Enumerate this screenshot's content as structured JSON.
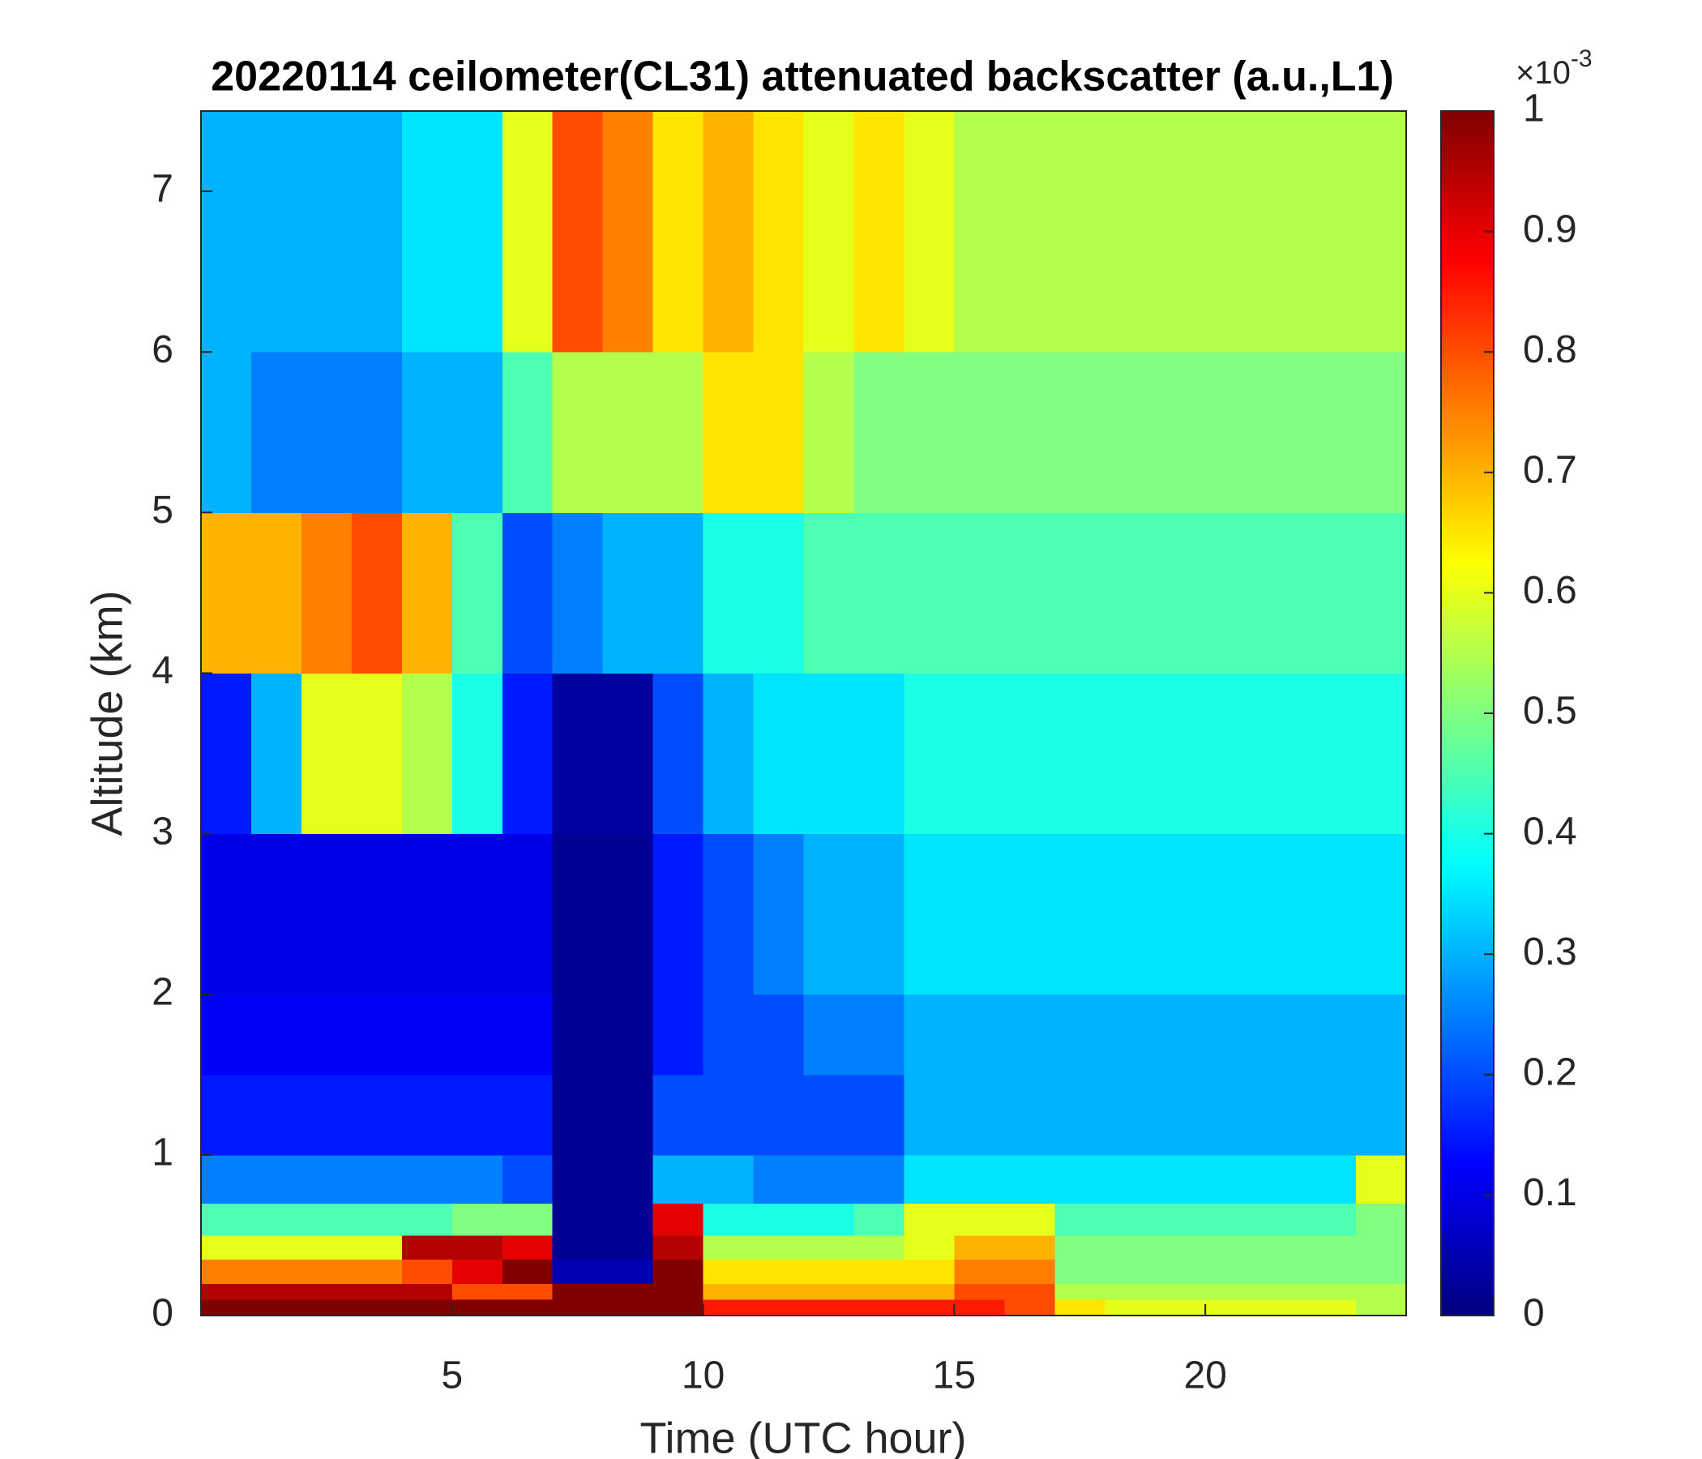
{
  "chart_data": {
    "type": "heatmap",
    "title": "20220114 ceilometer(CL31) attenuated backscatter (a.u.,L1)",
    "x_label": "Time (UTC hour)",
    "y_label": "Altitude (km)",
    "xlim": [
      0,
      24
    ],
    "ylim": [
      0,
      7.5
    ],
    "xticks": [
      5,
      10,
      15,
      20
    ],
    "yticks": [
      0,
      1,
      2,
      3,
      4,
      5,
      6,
      7
    ],
    "xbins": [
      0,
      1,
      2,
      3,
      4,
      5,
      6,
      7,
      8,
      9,
      10,
      11,
      12,
      13,
      14,
      15,
      16,
      17,
      18,
      19,
      20,
      21,
      22,
      23,
      24
    ],
    "ybins": [
      0,
      0.1,
      0.2,
      0.35,
      0.5,
      0.7,
      1,
      1.5,
      2,
      3,
      4,
      5,
      6,
      7.5
    ],
    "colormap": "jet",
    "clim": [
      0,
      1
    ],
    "cticks": [
      0,
      0.1,
      0.2,
      0.3,
      0.4,
      0.5,
      0.6,
      0.7,
      0.8,
      0.9,
      1
    ],
    "colorbar_multiplier_base": "×10",
    "colorbar_multiplier_exponent": "-3",
    "z": [
      [
        1,
        1,
        1,
        1,
        1,
        1,
        1,
        1,
        1,
        1,
        0.85,
        0.85,
        0.85,
        0.85,
        0.85,
        0.85,
        0.8,
        0.65,
        0.6,
        0.6,
        0.6,
        0.6,
        0.6,
        0.55
      ],
      [
        0.95,
        0.95,
        0.95,
        0.95,
        0.95,
        0.8,
        0.8,
        1,
        1,
        1,
        0.7,
        0.7,
        0.7,
        0.7,
        0.7,
        0.8,
        0.8,
        0.55,
        0.55,
        0.55,
        0.55,
        0.55,
        0.55,
        0.55
      ],
      [
        0.75,
        0.75,
        0.75,
        0.75,
        0.8,
        0.9,
        1,
        0.05,
        0.05,
        1,
        0.65,
        0.65,
        0.65,
        0.65,
        0.65,
        0.75,
        0.75,
        0.5,
        0.5,
        0.5,
        0.5,
        0.5,
        0.5,
        0.5
      ],
      [
        0.6,
        0.6,
        0.6,
        0.6,
        0.95,
        0.95,
        0.9,
        0.02,
        0.02,
        0.95,
        0.55,
        0.55,
        0.55,
        0.55,
        0.6,
        0.7,
        0.7,
        0.5,
        0.5,
        0.5,
        0.5,
        0.5,
        0.5,
        0.5
      ],
      [
        0.45,
        0.45,
        0.45,
        0.45,
        0.45,
        0.5,
        0.5,
        0.02,
        0.02,
        0.9,
        0.4,
        0.4,
        0.4,
        0.45,
        0.6,
        0.6,
        0.6,
        0.45,
        0.45,
        0.45,
        0.45,
        0.45,
        0.45,
        0.5
      ],
      [
        0.25,
        0.25,
        0.25,
        0.25,
        0.25,
        0.25,
        0.2,
        0.02,
        0.02,
        0.3,
        0.3,
        0.25,
        0.25,
        0.25,
        0.35,
        0.35,
        0.35,
        0.35,
        0.35,
        0.35,
        0.35,
        0.35,
        0.35,
        0.6
      ],
      [
        0.15,
        0.15,
        0.15,
        0.15,
        0.15,
        0.15,
        0.15,
        0.02,
        0.02,
        0.2,
        0.2,
        0.2,
        0.2,
        0.2,
        0.3,
        0.3,
        0.3,
        0.3,
        0.3,
        0.3,
        0.3,
        0.3,
        0.3,
        0.3
      ],
      [
        0.12,
        0.12,
        0.12,
        0.12,
        0.12,
        0.12,
        0.12,
        0.02,
        0.02,
        0.15,
        0.2,
        0.2,
        0.25,
        0.25,
        0.3,
        0.3,
        0.3,
        0.3,
        0.3,
        0.3,
        0.3,
        0.3,
        0.3,
        0.3
      ],
      [
        0.1,
        0.1,
        0.1,
        0.1,
        0.1,
        0.1,
        0.1,
        0.02,
        0.02,
        0.15,
        0.2,
        0.25,
        0.3,
        0.3,
        0.35,
        0.35,
        0.35,
        0.35,
        0.35,
        0.35,
        0.35,
        0.35,
        0.35,
        0.35
      ],
      [
        0.15,
        0.3,
        0.6,
        0.6,
        0.55,
        0.4,
        0.15,
        0.03,
        0.03,
        0.2,
        0.3,
        0.35,
        0.35,
        0.35,
        0.4,
        0.4,
        0.4,
        0.4,
        0.4,
        0.4,
        0.4,
        0.4,
        0.4,
        0.4
      ],
      [
        0.7,
        0.7,
        0.75,
        0.8,
        0.7,
        0.45,
        0.2,
        0.25,
        0.3,
        0.3,
        0.4,
        0.4,
        0.45,
        0.45,
        0.45,
        0.45,
        0.45,
        0.45,
        0.45,
        0.45,
        0.45,
        0.45,
        0.45,
        0.45
      ],
      [
        0.3,
        0.25,
        0.25,
        0.25,
        0.3,
        0.3,
        0.45,
        0.55,
        0.55,
        0.55,
        0.65,
        0.65,
        0.55,
        0.5,
        0.5,
        0.5,
        0.5,
        0.5,
        0.5,
        0.5,
        0.5,
        0.5,
        0.5,
        0.5
      ],
      [
        0.3,
        0.3,
        0.3,
        0.3,
        0.35,
        0.35,
        0.6,
        0.8,
        0.75,
        0.65,
        0.7,
        0.65,
        0.6,
        0.65,
        0.6,
        0.55,
        0.55,
        0.55,
        0.55,
        0.55,
        0.55,
        0.55,
        0.55,
        0.55
      ]
    ]
  }
}
